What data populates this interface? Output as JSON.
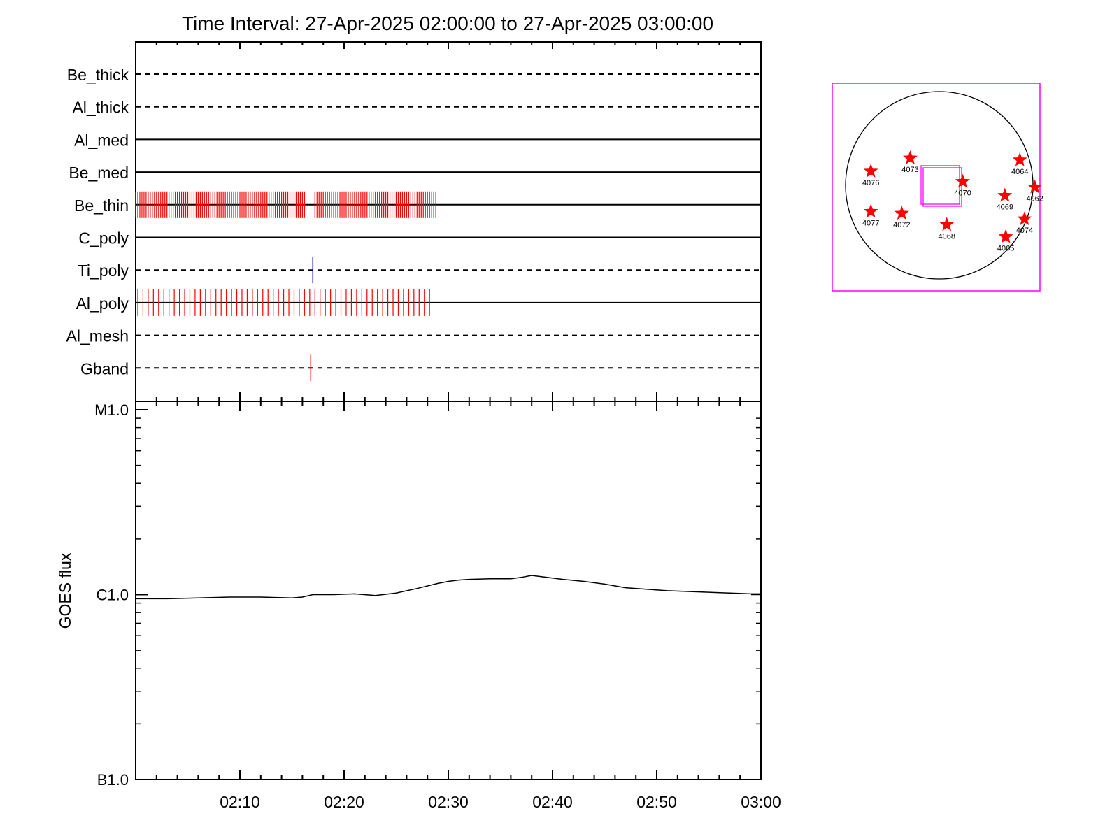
{
  "chart_data": [
    {
      "type": "timeline",
      "title": "Time Interval: 27-Apr-2025 02:00:00 to 27-Apr-2025 03:00:00",
      "xlim": [
        "02:00",
        "03:00"
      ],
      "filters": [
        {
          "name": "Be_thick",
          "style": "dashed",
          "marks": []
        },
        {
          "name": "Al_thick",
          "style": "dashed",
          "marks": []
        },
        {
          "name": "Al_med",
          "style": "solid",
          "marks": []
        },
        {
          "name": "Be_med",
          "style": "solid",
          "marks": []
        },
        {
          "name": "Be_thin",
          "style": "solid",
          "mark_color": "#ff0000",
          "mark_intervals_min": 0.2,
          "mark_ranges": [
            [
              "02:00",
              "02:16.3"
            ],
            [
              "02:17.2",
              "02:28.8"
            ]
          ]
        },
        {
          "name": "C_poly",
          "style": "solid",
          "marks": []
        },
        {
          "name": "Ti_poly",
          "style": "dashed",
          "mark_color": "#0000cc",
          "marks": [
            "02:17.0"
          ]
        },
        {
          "name": "Al_poly",
          "style": "solid",
          "mark_color": "#ff0000",
          "mark_intervals_min": 0.5,
          "mark_ranges": [
            [
              "02:00.2",
              "02:28.5"
            ]
          ]
        },
        {
          "name": "Al_mesh",
          "style": "dashed",
          "marks": []
        },
        {
          "name": "Gband",
          "style": "dashed",
          "mark_color": "#ff0000",
          "marks": [
            "02:16.8"
          ]
        }
      ]
    },
    {
      "type": "line",
      "ylabel": "GOES flux",
      "yscale": "log",
      "ylim": [
        1e-07,
        1e-05
      ],
      "yticks": [
        {
          "value": 1e-05,
          "label": "M1.0"
        },
        {
          "value": 1e-06,
          "label": "C1.0"
        },
        {
          "value": 1e-07,
          "label": "B1.0"
        }
      ],
      "xticks": [
        "02:10",
        "02:20",
        "02:30",
        "02:40",
        "02:50",
        "03:00"
      ],
      "series": [
        {
          "x_minutes": [
            0,
            3,
            6,
            9,
            12,
            15,
            16,
            17,
            19,
            21,
            23,
            25,
            27,
            29,
            30,
            31,
            32,
            34,
            36,
            37,
            38,
            39,
            41,
            43,
            45,
            47,
            49,
            51,
            53,
            55,
            57,
            59,
            60
          ],
          "y": [
            9.5e-07,
            9.5e-07,
            9.6e-07,
            9.7e-07,
            9.7e-07,
            9.6e-07,
            9.7e-07,
            1e-06,
            1e-06,
            1.01e-06,
            9.9e-07,
            1.02e-06,
            1.08e-06,
            1.15e-06,
            1.18e-06,
            1.2e-06,
            1.21e-06,
            1.22e-06,
            1.22e-06,
            1.24e-06,
            1.27e-06,
            1.25e-06,
            1.21e-06,
            1.18e-06,
            1.14e-06,
            1.09e-06,
            1.07e-06,
            1.05e-06,
            1.04e-06,
            1.03e-06,
            1.02e-06,
            1.01e-06,
            1.01e-06
          ]
        }
      ]
    },
    {
      "type": "scatter",
      "description_kind": "solar disk active region map",
      "active_regions": [
        {
          "label": "4073",
          "x": -0.31,
          "y": 0.29
        },
        {
          "label": "4070",
          "x": 0.25,
          "y": 0.04
        },
        {
          "label": "4064",
          "x": 0.86,
          "y": 0.27
        },
        {
          "label": "4062",
          "x": 1.02,
          "y": -0.02
        },
        {
          "label": "4076",
          "x": -0.73,
          "y": 0.15
        },
        {
          "label": "4069",
          "x": 0.7,
          "y": -0.11
        },
        {
          "label": "4077",
          "x": -0.73,
          "y": -0.28
        },
        {
          "label": "4072",
          "x": -0.4,
          "y": -0.3
        },
        {
          "label": "4068",
          "x": 0.08,
          "y": -0.42
        },
        {
          "label": "4074",
          "x": 0.91,
          "y": -0.36
        },
        {
          "label": "4065",
          "x": 0.71,
          "y": -0.55
        }
      ],
      "colors": {
        "frame": "#ff00ff",
        "star": "#ff0000",
        "disk": "#000000"
      }
    }
  ]
}
